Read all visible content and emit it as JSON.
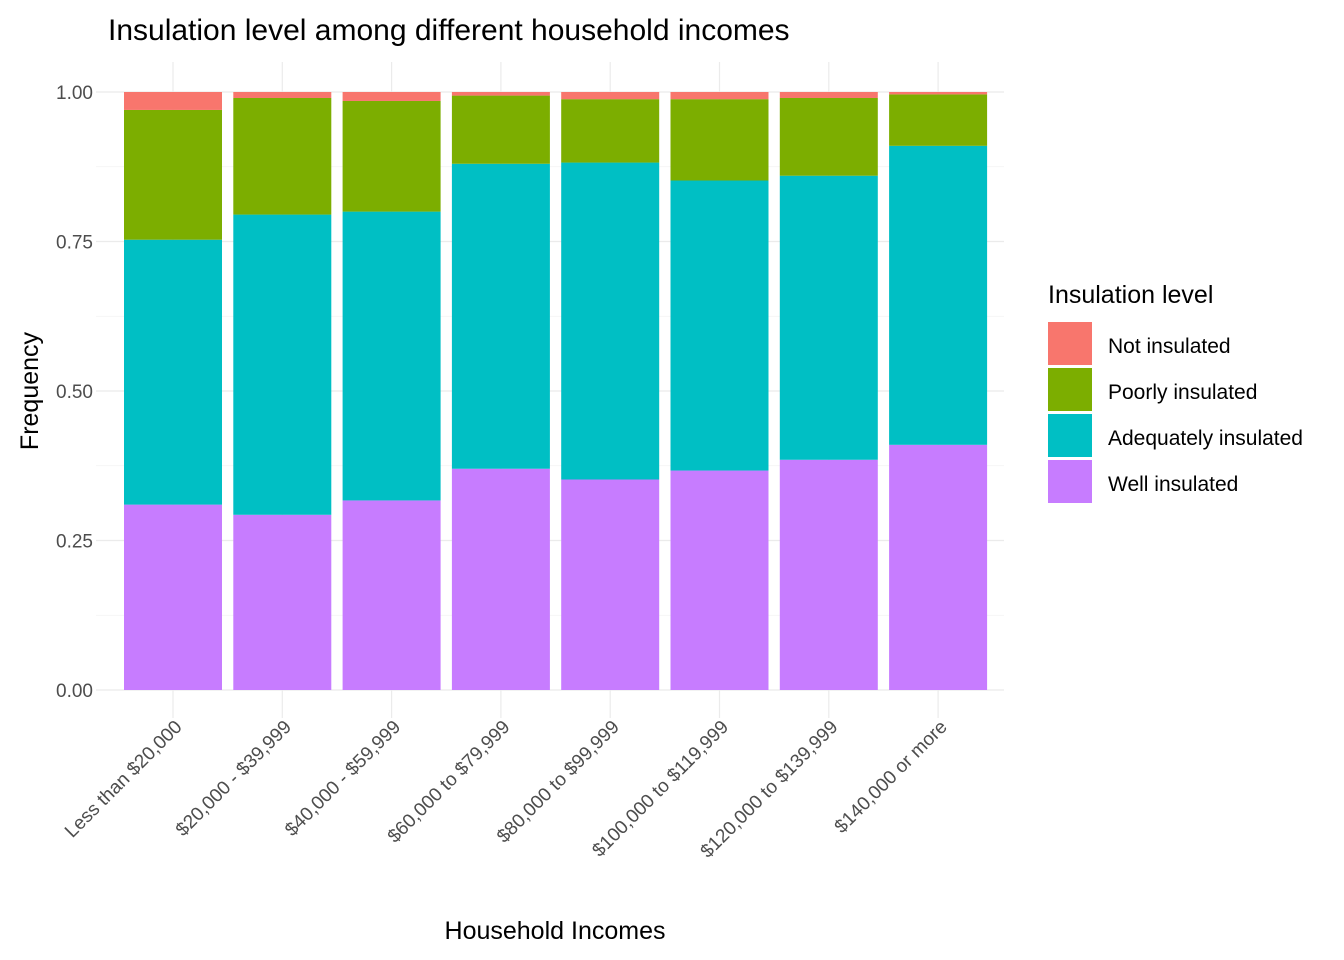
{
  "chart_data": {
    "type": "bar",
    "stacked": true,
    "title": "Insulation level among different household incomes",
    "xlabel": "Household Incomes",
    "ylabel": "Frequency",
    "ylim": [
      0,
      1
    ],
    "yticks": [
      "0.00",
      "0.25",
      "0.50",
      "0.75",
      "1.00"
    ],
    "grid": true,
    "legend_position": "right",
    "legend_title": "Insulation level",
    "categories": [
      "Less than $20,000",
      "$20,000 - $39,999",
      "$40,000 - $59,999",
      "$60,000 to $79,999",
      "$80,000 to $99,999",
      "$100,000 to $119,999",
      "$120,000 to $139,999",
      "$140,000 or more"
    ],
    "series": [
      {
        "name": "Not insulated",
        "color": "#F8766D",
        "values": [
          0.03,
          0.01,
          0.015,
          0.006,
          0.012,
          0.012,
          0.01,
          0.004
        ]
      },
      {
        "name": "Poorly insulated",
        "color": "#7CAE00",
        "values": [
          0.217,
          0.195,
          0.185,
          0.114,
          0.106,
          0.136,
          0.13,
          0.086
        ]
      },
      {
        "name": "Adequately insulated",
        "color": "#00BFC4",
        "values": [
          0.443,
          0.502,
          0.483,
          0.51,
          0.53,
          0.485,
          0.475,
          0.5
        ]
      },
      {
        "name": "Well insulated",
        "color": "#C77CFF",
        "values": [
          0.31,
          0.293,
          0.317,
          0.37,
          0.352,
          0.367,
          0.385,
          0.41
        ]
      }
    ]
  }
}
